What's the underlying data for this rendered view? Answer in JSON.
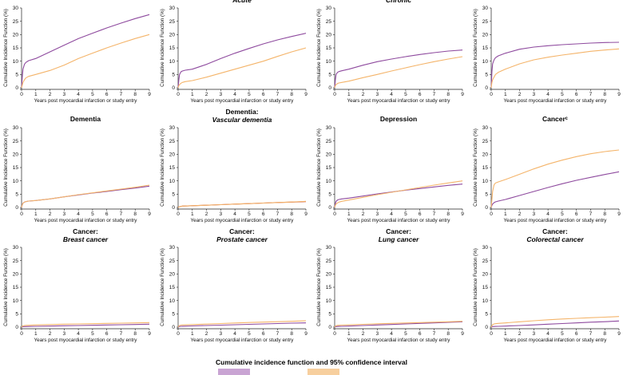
{
  "colors": {
    "purple": "#8e4a9e",
    "orange": "#f4b46a",
    "red": "#c0392b"
  },
  "legend": {
    "title": "Cumulative incidence function and 95% confidence interval"
  },
  "chart_data": [
    {
      "type": "line",
      "title": "",
      "subtitle": "",
      "xlabel": "Years post myocardial infarction or study entry",
      "ylabel": "Cumulative Incidence Function (%)",
      "xlim": [
        0,
        9
      ],
      "ylim": [
        0,
        30
      ],
      "x": [
        0,
        0.05,
        0.1,
        0.2,
        0.3,
        0.5,
        1,
        2,
        3,
        4,
        5,
        6,
        7,
        8,
        9
      ],
      "series": [
        {
          "color": "purple",
          "values": [
            0,
            4,
            7,
            8.8,
            9.5,
            10.2,
            11,
            13.5,
            16,
            18.5,
            20.5,
            22.5,
            24.3,
            26,
            27.5
          ]
        },
        {
          "color": "orange",
          "values": [
            0,
            1,
            2,
            3,
            3.7,
            4.3,
            5,
            6.5,
            8.5,
            11,
            13,
            15,
            16.8,
            18.5,
            20
          ]
        }
      ]
    },
    {
      "type": "line",
      "title": "",
      "subtitle": "Acute",
      "xlabel": "Years post myocardial infarction or study entry",
      "ylabel": "Cumulative Incidence Function (%)",
      "xlim": [
        0,
        9
      ],
      "ylim": [
        0,
        30
      ],
      "x": [
        0,
        0.05,
        0.1,
        0.2,
        0.3,
        0.5,
        1,
        2,
        3,
        4,
        5,
        6,
        7,
        8,
        9
      ],
      "series": [
        {
          "color": "purple",
          "values": [
            0,
            3,
            5,
            6,
            6.3,
            6.6,
            7,
            8.8,
            11,
            13,
            14.8,
            16.5,
            18,
            19.3,
            20.5
          ]
        },
        {
          "color": "orange",
          "values": [
            0,
            0.8,
            1.2,
            1.7,
            2,
            2.3,
            2.7,
            4,
            5.5,
            7,
            8.5,
            10,
            11.8,
            13.5,
            15
          ]
        }
      ]
    },
    {
      "type": "line",
      "title": "",
      "subtitle": "Chronic",
      "xlabel": "Years post myocardial infarction or study entry",
      "ylabel": "Cumulative Incidence Function (%)",
      "xlim": [
        0,
        9
      ],
      "ylim": [
        0,
        30
      ],
      "x": [
        0,
        0.05,
        0.1,
        0.2,
        0.3,
        0.5,
        1,
        2,
        3,
        4,
        5,
        6,
        7,
        8,
        9
      ],
      "series": [
        {
          "color": "purple",
          "values": [
            0,
            3,
            5,
            5.8,
            6.1,
            6.4,
            7,
            8.5,
            9.8,
            10.8,
            11.7,
            12.5,
            13.2,
            13.8,
            14.2
          ]
        },
        {
          "color": "orange",
          "values": [
            0,
            0.8,
            1.2,
            1.6,
            1.8,
            2,
            2.5,
            3.8,
            5,
            6.3,
            7.5,
            8.7,
            9.8,
            10.8,
            11.7
          ]
        }
      ]
    },
    {
      "type": "line",
      "title": "",
      "subtitle": "",
      "xlabel": "Years post myocardial infarction or study entry",
      "ylabel": "Cumulative Incidence Function (%)",
      "xlim": [
        0,
        9
      ],
      "ylim": [
        0,
        30
      ],
      "x": [
        0,
        0.05,
        0.1,
        0.2,
        0.3,
        0.5,
        1,
        2,
        3,
        4,
        5,
        6,
        7,
        8,
        9
      ],
      "series": [
        {
          "color": "purple",
          "values": [
            0,
            6,
            9,
            10.5,
            11.3,
            12,
            13,
            14.5,
            15.3,
            15.8,
            16.2,
            16.5,
            16.8,
            17,
            17.1
          ]
        },
        {
          "color": "orange",
          "values": [
            0,
            2,
            3,
            4,
            5,
            5.8,
            7,
            9,
            10.5,
            11.5,
            12.3,
            13,
            13.7,
            14.2,
            14.6
          ]
        }
      ]
    },
    {
      "type": "line",
      "title": "Dementia",
      "subtitle": "",
      "xlabel": "Years post myocardial infarction or study entry",
      "ylabel": "Cumulative Incidence Function (%)",
      "xlim": [
        0,
        9
      ],
      "ylim": [
        0,
        30
      ],
      "x": [
        0,
        0.05,
        0.1,
        0.2,
        0.3,
        0.5,
        1,
        2,
        3,
        4,
        5,
        6,
        7,
        8,
        9
      ],
      "series": [
        {
          "color": "purple",
          "values": [
            0,
            1,
            1.6,
            2,
            2.2,
            2.4,
            2.6,
            3.2,
            4,
            4.7,
            5.4,
            6,
            6.7,
            7.3,
            8
          ]
        },
        {
          "color": "orange",
          "values": [
            0,
            1,
            1.6,
            2,
            2.2,
            2.4,
            2.6,
            3.2,
            4,
            4.8,
            5.5,
            6.2,
            6.9,
            7.6,
            8.4
          ]
        }
      ]
    },
    {
      "type": "line",
      "title": "Dementia:",
      "subtitle": "Vascular dementia",
      "xlabel": "Years post myocardial infarction or study entry",
      "ylabel": "Cumulative Incidence Function (%)",
      "xlim": [
        0,
        9
      ],
      "ylim": [
        0,
        30
      ],
      "x": [
        0,
        0.05,
        0.1,
        0.2,
        0.3,
        0.5,
        1,
        2,
        3,
        4,
        5,
        6,
        7,
        8,
        9
      ],
      "series": [
        {
          "color": "purple",
          "values": [
            0,
            0.2,
            0.3,
            0.4,
            0.5,
            0.55,
            0.65,
            0.85,
            1.05,
            1.25,
            1.45,
            1.65,
            1.85,
            2,
            2.2
          ]
        },
        {
          "color": "orange",
          "values": [
            0,
            0.2,
            0.3,
            0.4,
            0.5,
            0.55,
            0.65,
            0.85,
            1.05,
            1.25,
            1.45,
            1.65,
            1.85,
            2.05,
            2.3
          ]
        }
      ]
    },
    {
      "type": "line",
      "title": "Depression",
      "subtitle": "",
      "xlabel": "Years post myocardial infarction or study entry",
      "ylabel": "Cumulative Incidence Function (%)",
      "xlim": [
        0,
        9
      ],
      "ylim": [
        0,
        30
      ],
      "x": [
        0,
        0.05,
        0.1,
        0.2,
        0.3,
        0.5,
        1,
        2,
        3,
        4,
        5,
        6,
        7,
        8,
        9
      ],
      "series": [
        {
          "color": "purple",
          "values": [
            0,
            1.5,
            2.3,
            2.8,
            3,
            3.2,
            3.5,
            4.3,
            5.1,
            5.8,
            6.5,
            7.1,
            7.7,
            8.3,
            8.8
          ]
        },
        {
          "color": "orange",
          "values": [
            0,
            0.8,
            1.3,
            1.7,
            2,
            2.3,
            2.8,
            3.8,
            4.8,
            5.7,
            6.6,
            7.5,
            8.4,
            9.2,
            10
          ]
        }
      ]
    },
    {
      "type": "line",
      "title": "Cancerᶜ",
      "subtitle": "",
      "xlabel": "Years post myocardial infarction or study entry",
      "ylabel": "Cumulative Incidence Function (%)",
      "xlim": [
        0,
        9
      ],
      "ylim": [
        0,
        30
      ],
      "x": [
        0,
        0.05,
        0.1,
        0.2,
        0.3,
        0.5,
        1,
        2,
        3,
        4,
        5,
        6,
        7,
        8,
        9
      ],
      "series": [
        {
          "color": "purple",
          "values": [
            0,
            0.8,
            1.3,
            1.8,
            2.1,
            2.4,
            3,
            4.5,
            6,
            7.5,
            8.9,
            10.2,
            11.3,
            12.4,
            13.4
          ]
        },
        {
          "color": "orange",
          "values": [
            0,
            3,
            6,
            8.5,
            9.2,
            9.6,
            10.5,
            12.5,
            14.5,
            16.3,
            17.8,
            19.1,
            20.2,
            21,
            21.6
          ]
        }
      ]
    },
    {
      "type": "line",
      "title": "Cancer:",
      "subtitle": "Breast cancer",
      "xlabel": "Years post myocardial infarction or study entry",
      "ylabel": "Cumulative Incidence Function (%)",
      "xlim": [
        0,
        9
      ],
      "ylim": [
        0,
        30
      ],
      "x": [
        0,
        0.05,
        0.1,
        0.2,
        0.3,
        0.5,
        1,
        2,
        3,
        4,
        5,
        6,
        7,
        8,
        9
      ],
      "series": [
        {
          "color": "purple",
          "values": [
            0,
            0.1,
            0.15,
            0.2,
            0.22,
            0.25,
            0.3,
            0.4,
            0.5,
            0.6,
            0.7,
            0.8,
            0.9,
            1,
            1.1
          ]
        },
        {
          "color": "orange",
          "values": [
            0,
            0.3,
            0.5,
            0.6,
            0.65,
            0.7,
            0.8,
            0.95,
            1.1,
            1.2,
            1.3,
            1.4,
            1.5,
            1.6,
            1.7
          ]
        }
      ]
    },
    {
      "type": "line",
      "title": "Cancer:",
      "subtitle": "Prostate cancer",
      "xlabel": "Years post myocardial infarction or study entry",
      "ylabel": "Cumulative Incidence Function (%)",
      "xlim": [
        0,
        9
      ],
      "ylim": [
        0,
        30
      ],
      "x": [
        0,
        0.05,
        0.1,
        0.2,
        0.3,
        0.5,
        1,
        2,
        3,
        4,
        5,
        6,
        7,
        8,
        9
      ],
      "series": [
        {
          "color": "purple",
          "values": [
            0,
            0.15,
            0.25,
            0.3,
            0.32,
            0.35,
            0.45,
            0.6,
            0.75,
            0.9,
            1.05,
            1.2,
            1.35,
            1.5,
            1.6
          ]
        },
        {
          "color": "orange",
          "values": [
            0,
            0.4,
            0.6,
            0.75,
            0.8,
            0.85,
            0.95,
            1.15,
            1.35,
            1.55,
            1.75,
            1.9,
            2.05,
            2.2,
            2.4
          ]
        }
      ]
    },
    {
      "type": "line",
      "title": "Cancer:",
      "subtitle": "Lung cancer",
      "xlabel": "Years post myocardial infarction or study entry",
      "ylabel": "Cumulative Incidence Function (%)",
      "xlim": [
        0,
        9
      ],
      "ylim": [
        0,
        30
      ],
      "x": [
        0,
        0.05,
        0.1,
        0.2,
        0.3,
        0.5,
        1,
        2,
        3,
        4,
        5,
        6,
        7,
        8,
        9
      ],
      "series": [
        {
          "color": "purple",
          "values": [
            0,
            0.1,
            0.2,
            0.25,
            0.28,
            0.3,
            0.4,
            0.6,
            0.8,
            1,
            1.2,
            1.4,
            1.6,
            1.8,
            2
          ]
        },
        {
          "color": "orange",
          "values": [
            0,
            0.35,
            0.55,
            0.65,
            0.7,
            0.75,
            0.85,
            1.05,
            1.25,
            1.4,
            1.55,
            1.7,
            1.85,
            2,
            2.2
          ]
        }
      ]
    },
    {
      "type": "line",
      "title": "Cancer:",
      "subtitle": "Colorectal cancer",
      "xlabel": "Years post myocardial infarction or study entry",
      "ylabel": "Cumulative Incidence Function (%)",
      "xlim": [
        0,
        9
      ],
      "ylim": [
        0,
        30
      ],
      "x": [
        0,
        0.05,
        0.1,
        0.2,
        0.3,
        0.5,
        1,
        2,
        3,
        4,
        5,
        6,
        7,
        8,
        9
      ],
      "series": [
        {
          "color": "purple",
          "values": [
            0,
            0.1,
            0.2,
            0.25,
            0.28,
            0.3,
            0.4,
            0.6,
            0.85,
            1.1,
            1.35,
            1.6,
            1.85,
            2.05,
            2.3
          ]
        },
        {
          "color": "orange",
          "values": [
            0,
            0.5,
            0.9,
            1.2,
            1.3,
            1.4,
            1.6,
            2,
            2.4,
            2.75,
            3.05,
            3.3,
            3.55,
            3.75,
            4
          ]
        }
      ]
    }
  ]
}
